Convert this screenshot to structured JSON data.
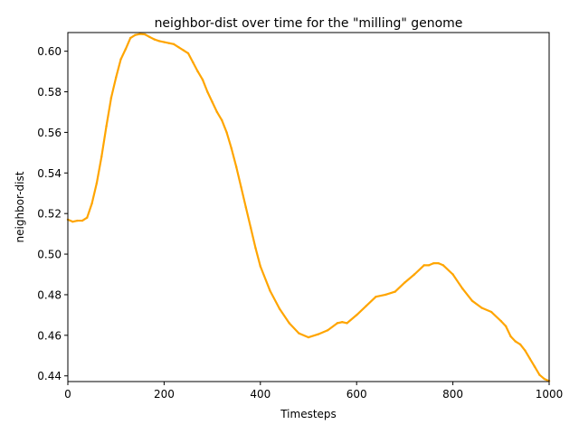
{
  "chart_data": {
    "type": "line",
    "title": "neighbor-dist over time for the \"milling\" genome",
    "xlabel": "Timesteps",
    "ylabel": "neighbor-dist",
    "xlim": [
      0,
      1000
    ],
    "ylim": [
      0.4372,
      0.6092
    ],
    "xticks": [
      0,
      200,
      400,
      600,
      800,
      1000
    ],
    "yticks": [
      0.44,
      0.46,
      0.48,
      0.5,
      0.52,
      0.54,
      0.56,
      0.58,
      0.6
    ],
    "ytick_labels": [
      "0.44",
      "0.46",
      "0.48",
      "0.50",
      "0.52",
      "0.54",
      "0.56",
      "0.58",
      "0.60"
    ],
    "grid": false,
    "legend": "none",
    "series": [
      {
        "color": "#FFA500",
        "x": [
          0,
          10,
          20,
          30,
          40,
          50,
          60,
          70,
          80,
          90,
          100,
          110,
          120,
          130,
          140,
          150,
          160,
          170,
          180,
          190,
          200,
          210,
          220,
          230,
          240,
          250,
          260,
          270,
          280,
          290,
          300,
          310,
          320,
          330,
          340,
          350,
          360,
          370,
          380,
          390,
          400,
          420,
          440,
          460,
          480,
          500,
          520,
          540,
          560,
          570,
          580,
          600,
          620,
          640,
          660,
          680,
          700,
          720,
          740,
          750,
          760,
          770,
          780,
          800,
          820,
          840,
          860,
          880,
          900,
          910,
          920,
          930,
          940,
          950,
          960,
          970,
          980,
          990,
          1000
        ],
        "y": [
          0.517,
          0.516,
          0.5165,
          0.5165,
          0.518,
          0.525,
          0.535,
          0.548,
          0.563,
          0.577,
          0.587,
          0.596,
          0.601,
          0.6065,
          0.608,
          0.6085,
          0.6083,
          0.607,
          0.6058,
          0.605,
          0.6045,
          0.604,
          0.6035,
          0.602,
          0.6005,
          0.599,
          0.5945,
          0.59,
          0.586,
          0.58,
          0.575,
          0.57,
          0.566,
          0.56,
          0.552,
          0.543,
          0.533,
          0.523,
          0.513,
          0.503,
          0.494,
          0.482,
          0.473,
          0.466,
          0.461,
          0.459,
          0.4605,
          0.4625,
          0.466,
          0.4665,
          0.466,
          0.47,
          0.4745,
          0.479,
          0.48,
          0.4815,
          0.486,
          0.49,
          0.4945,
          0.4945,
          0.4955,
          0.4955,
          0.4945,
          0.49,
          0.483,
          0.477,
          0.4735,
          0.4715,
          0.467,
          0.4645,
          0.4595,
          0.457,
          0.4555,
          0.4525,
          0.4485,
          0.4445,
          0.4405,
          0.4385,
          0.4375
        ]
      }
    ]
  }
}
